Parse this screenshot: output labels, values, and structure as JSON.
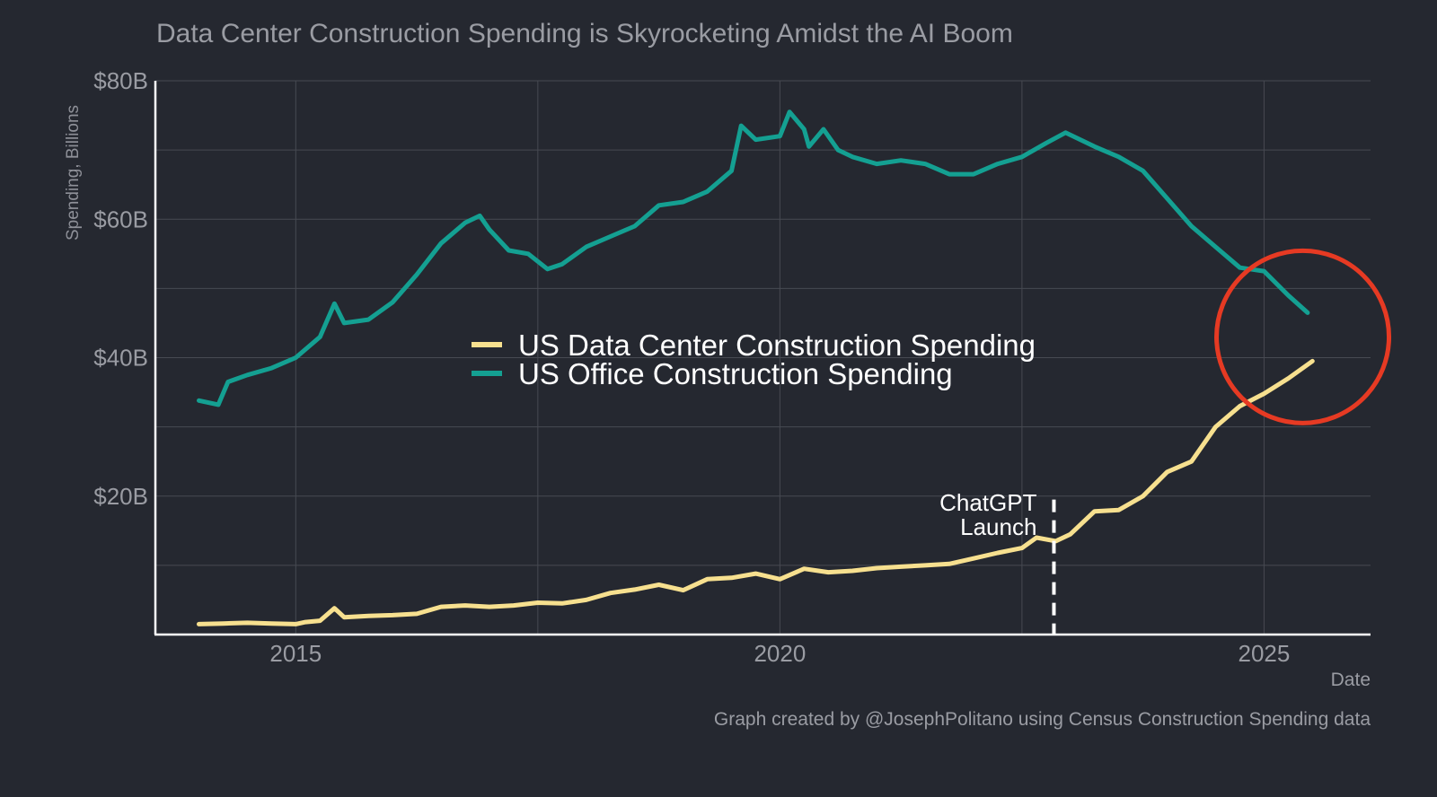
{
  "chart_data": {
    "type": "line",
    "title": "Data Center Construction Spending is Skyrocketing Amidst the AI Boom",
    "xlabel": "Date",
    "ylabel": "Spending, Billions",
    "xlim": [
      2013.55,
      2026.1
    ],
    "ylim": [
      0,
      80
    ],
    "grid": true,
    "legend_position": "center",
    "y_ticks": [
      {
        "v": 20,
        "label": "$20B"
      },
      {
        "v": 40,
        "label": "$40B"
      },
      {
        "v": 60,
        "label": "$60B"
      },
      {
        "v": 80,
        "label": "$80B"
      }
    ],
    "x_ticks": [
      {
        "v": 2015,
        "label": "2015"
      },
      {
        "v": 2020,
        "label": "2020"
      },
      {
        "v": 2025,
        "label": "2025"
      }
    ],
    "annotation": {
      "text_line1": "ChatGPT",
      "text_line2": "Launch",
      "x": 2022.83
    },
    "highlight_circle": {
      "x": 2025.4,
      "y": 43,
      "color": "#e63a23"
    },
    "caption": "Graph created by @JosephPolitano using Census Construction Spending data",
    "series": [
      {
        "name": "US Data Center Construction Spending",
        "color": "#f7e08f",
        "points": [
          [
            2014.0,
            1.5
          ],
          [
            2014.25,
            1.6
          ],
          [
            2014.5,
            1.7
          ],
          [
            2014.75,
            1.6
          ],
          [
            2015.0,
            1.5
          ],
          [
            2015.1,
            1.8
          ],
          [
            2015.25,
            2.0
          ],
          [
            2015.4,
            3.8
          ],
          [
            2015.5,
            2.5
          ],
          [
            2015.75,
            2.7
          ],
          [
            2016.0,
            2.8
          ],
          [
            2016.25,
            3.0
          ],
          [
            2016.5,
            4.0
          ],
          [
            2016.75,
            4.2
          ],
          [
            2017.0,
            4.0
          ],
          [
            2017.25,
            4.2
          ],
          [
            2017.5,
            4.6
          ],
          [
            2017.75,
            4.5
          ],
          [
            2018.0,
            5.0
          ],
          [
            2018.25,
            6.0
          ],
          [
            2018.5,
            6.5
          ],
          [
            2018.75,
            7.2
          ],
          [
            2019.0,
            6.4
          ],
          [
            2019.25,
            8.0
          ],
          [
            2019.5,
            8.2
          ],
          [
            2019.75,
            8.8
          ],
          [
            2020.0,
            8.0
          ],
          [
            2020.25,
            9.5
          ],
          [
            2020.5,
            9.0
          ],
          [
            2020.75,
            9.2
          ],
          [
            2021.0,
            9.6
          ],
          [
            2021.25,
            9.8
          ],
          [
            2021.5,
            10.0
          ],
          [
            2021.75,
            10.2
          ],
          [
            2022.0,
            11.0
          ],
          [
            2022.25,
            11.8
          ],
          [
            2022.5,
            12.5
          ],
          [
            2022.65,
            14.0
          ],
          [
            2022.85,
            13.5
          ],
          [
            2023.0,
            14.5
          ],
          [
            2023.25,
            17.8
          ],
          [
            2023.5,
            18.0
          ],
          [
            2023.75,
            20.0
          ],
          [
            2024.0,
            23.5
          ],
          [
            2024.25,
            25.0
          ],
          [
            2024.5,
            30.0
          ],
          [
            2024.75,
            33.0
          ],
          [
            2025.0,
            34.8
          ],
          [
            2025.25,
            37.0
          ],
          [
            2025.5,
            39.5
          ]
        ]
      },
      {
        "name": "US Office Construction Spending",
        "color": "#14a092",
        "points": [
          [
            2014.0,
            33.8
          ],
          [
            2014.2,
            33.2
          ],
          [
            2014.3,
            36.5
          ],
          [
            2014.5,
            37.5
          ],
          [
            2014.75,
            38.5
          ],
          [
            2015.0,
            40.0
          ],
          [
            2015.25,
            43.0
          ],
          [
            2015.4,
            47.8
          ],
          [
            2015.5,
            45.0
          ],
          [
            2015.75,
            45.5
          ],
          [
            2016.0,
            48.0
          ],
          [
            2016.25,
            52.0
          ],
          [
            2016.5,
            56.5
          ],
          [
            2016.75,
            59.5
          ],
          [
            2016.9,
            60.5
          ],
          [
            2017.0,
            58.5
          ],
          [
            2017.2,
            55.5
          ],
          [
            2017.4,
            55.0
          ],
          [
            2017.6,
            52.8
          ],
          [
            2017.75,
            53.5
          ],
          [
            2018.0,
            56.0
          ],
          [
            2018.25,
            57.5
          ],
          [
            2018.5,
            59.0
          ],
          [
            2018.75,
            62.0
          ],
          [
            2019.0,
            62.5
          ],
          [
            2019.25,
            64.0
          ],
          [
            2019.5,
            67.0
          ],
          [
            2019.6,
            73.5
          ],
          [
            2019.75,
            71.5
          ],
          [
            2020.0,
            72.0
          ],
          [
            2020.1,
            75.5
          ],
          [
            2020.25,
            73.0
          ],
          [
            2020.3,
            70.5
          ],
          [
            2020.45,
            73.0
          ],
          [
            2020.6,
            70.0
          ],
          [
            2020.75,
            69.0
          ],
          [
            2021.0,
            68.0
          ],
          [
            2021.25,
            68.5
          ],
          [
            2021.5,
            68.0
          ],
          [
            2021.75,
            66.5
          ],
          [
            2022.0,
            66.5
          ],
          [
            2022.25,
            68.0
          ],
          [
            2022.5,
            69.0
          ],
          [
            2022.75,
            71.0
          ],
          [
            2022.95,
            72.5
          ],
          [
            2023.25,
            70.5
          ],
          [
            2023.5,
            69.0
          ],
          [
            2023.75,
            67.0
          ],
          [
            2024.0,
            63.0
          ],
          [
            2024.25,
            59.0
          ],
          [
            2024.5,
            56.0
          ],
          [
            2024.75,
            53.0
          ],
          [
            2025.0,
            52.5
          ],
          [
            2025.25,
            49.0
          ],
          [
            2025.45,
            46.5
          ]
        ]
      }
    ]
  }
}
